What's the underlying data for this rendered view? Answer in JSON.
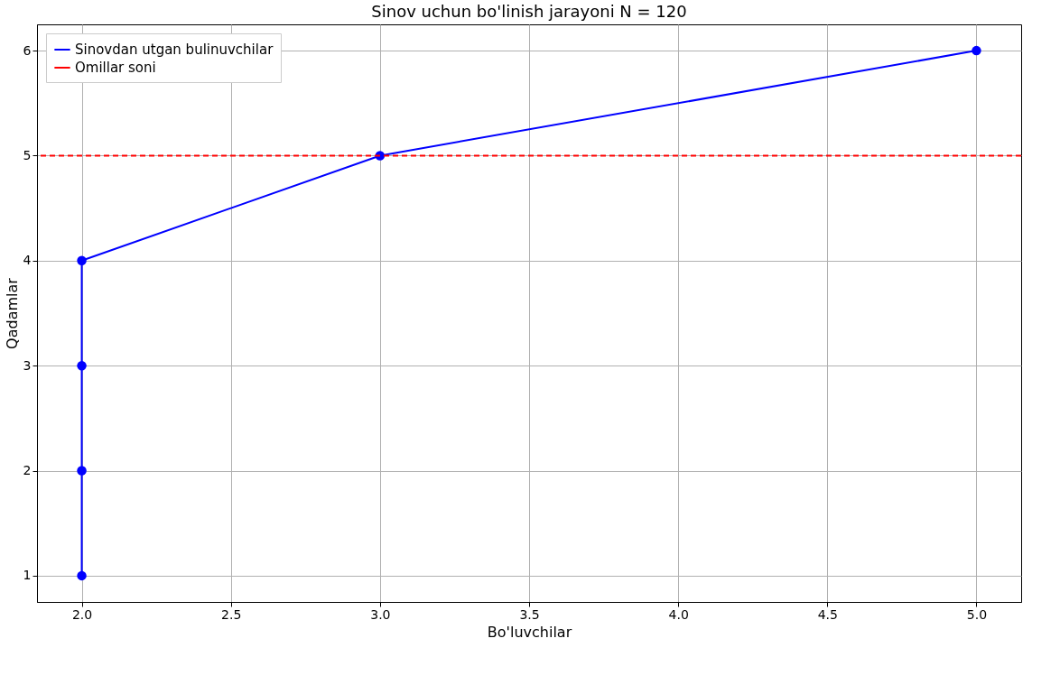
{
  "chart_data": {
    "type": "line",
    "title": "Sinov uchun bo'linish jarayoni N = 120",
    "xlabel": "Bo'luvchilar",
    "ylabel": "Qadamlar",
    "series": [
      {
        "name": "Sinovdan utgan bulinuvchilar",
        "color": "#0000ff",
        "x": [
          2,
          2,
          2,
          2,
          3,
          5
        ],
        "values": [
          1,
          2,
          3,
          4,
          5,
          6
        ]
      }
    ],
    "ref_lines": [
      {
        "axis": "y",
        "value": 5,
        "label": "Omillar soni",
        "color": "#ff0000",
        "line_style": "dashed"
      }
    ],
    "xlim": [
      1.85,
      5.15
    ],
    "ylim": [
      0.75,
      6.25
    ],
    "xticks": [
      {
        "value": 2,
        "label": "2.0"
      },
      {
        "value": 2.5,
        "label": "2.5"
      },
      {
        "value": 3,
        "label": "3.0"
      },
      {
        "value": 3.5,
        "label": "3.5"
      },
      {
        "value": 4,
        "label": "4.0"
      },
      {
        "value": 4.5,
        "label": "4.5"
      },
      {
        "value": 5,
        "label": "5.0"
      }
    ],
    "yticks": [
      1,
      2,
      3,
      4,
      5,
      6
    ],
    "grid": true,
    "legend": "top left",
    "marker": "circle",
    "line_style": "solid"
  }
}
